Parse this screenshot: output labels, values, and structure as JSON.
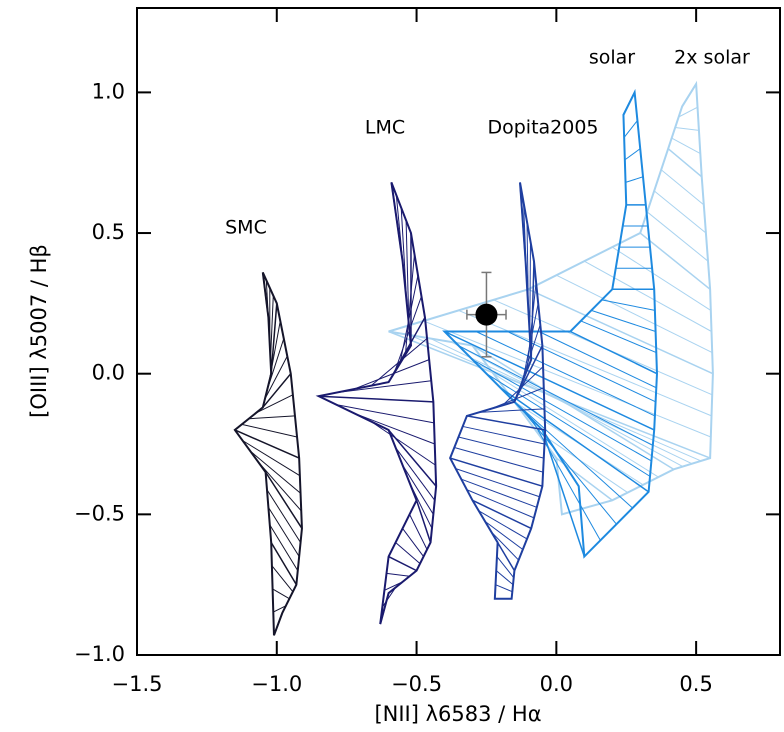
{
  "chart_data": {
    "type": "grid-line",
    "x_label": "[NII] λ6583 / Hα",
    "y_label": "[OIII] λ5007 / Hβ",
    "xlim": [
      -1.5,
      0.8
    ],
    "ylim": [
      -1.0,
      1.3
    ],
    "xticks": [
      {
        "value": -1.5,
        "label": "−1.5"
      },
      {
        "value": -1.0,
        "label": "−1.0"
      },
      {
        "value": -0.5,
        "label": "−0.5"
      },
      {
        "value": 0.0,
        "label": "0.0"
      },
      0.5
    ],
    "yticks": [
      {
        "value": -1.0,
        "label": "−1.0"
      },
      {
        "value": -0.5,
        "label": "−0.5"
      },
      {
        "value": 0.0,
        "label": "0.0"
      },
      0.5,
      {
        "value": 1.0,
        "label": "1.0"
      }
    ],
    "series": [
      {
        "name": "2x solar",
        "color": "#a9d3f0",
        "x": [
          0.5,
          0.52,
          0.55,
          0.56,
          0.55,
          0.42,
          0.2,
          0.02,
          0.0,
          -0.3,
          -0.6,
          -0.1,
          0.3,
          0.4,
          0.45
        ],
        "values": [
          1.03,
          0.7,
          0.3,
          0.0,
          -0.3,
          -0.34,
          -0.45,
          -0.5,
          -0.3,
          0.1,
          0.15,
          0.3,
          0.5,
          0.8,
          0.95
        ]
      },
      {
        "name": "solar",
        "color": "#1e8ae0",
        "x": [
          0.28,
          0.32,
          0.35,
          0.36,
          0.35,
          0.33,
          0.1,
          0.08,
          -0.05,
          -0.2,
          -0.4,
          0.05,
          0.2,
          0.25,
          0.24
        ],
        "values": [
          1.0,
          0.6,
          0.3,
          0.0,
          -0.2,
          -0.42,
          -0.65,
          -0.4,
          -0.2,
          -0.05,
          0.15,
          0.15,
          0.3,
          0.6,
          0.92
        ]
      },
      {
        "name": "Dopita2005",
        "color": "#1f3fa0",
        "x": [
          -0.13,
          -0.08,
          -0.05,
          -0.04,
          -0.05,
          -0.09,
          -0.15,
          -0.16,
          -0.22,
          -0.21,
          -0.3,
          -0.38,
          -0.32,
          -0.15,
          -0.09,
          -0.11
        ],
        "values": [
          0.68,
          0.4,
          0.1,
          -0.2,
          -0.4,
          -0.55,
          -0.7,
          -0.8,
          -0.8,
          -0.6,
          -0.45,
          -0.3,
          -0.15,
          -0.1,
          0.05,
          0.4
        ]
      },
      {
        "name": "LMC",
        "color": "#1a1a6e",
        "x": [
          -0.59,
          -0.52,
          -0.47,
          -0.44,
          -0.43,
          -0.45,
          -0.5,
          -0.6,
          -0.63,
          -0.6,
          -0.5,
          -0.6,
          -0.85,
          -0.6,
          -0.52,
          -0.55
        ],
        "values": [
          0.68,
          0.5,
          0.2,
          -0.1,
          -0.4,
          -0.6,
          -0.7,
          -0.78,
          -0.89,
          -0.65,
          -0.45,
          -0.2,
          -0.08,
          -0.03,
          0.1,
          0.4
        ]
      },
      {
        "name": "SMC",
        "color": "#15152a",
        "x": [
          -1.05,
          -1.0,
          -0.95,
          -0.92,
          -0.91,
          -0.93,
          -0.98,
          -1.01,
          -1.02,
          -1.04,
          -1.15,
          -1.05,
          -1.02,
          -1.03
        ],
        "values": [
          0.36,
          0.25,
          0.0,
          -0.3,
          -0.55,
          -0.75,
          -0.85,
          -0.93,
          -0.6,
          -0.35,
          -0.2,
          -0.12,
          0.0,
          0.2
        ]
      }
    ],
    "point": {
      "x": -0.25,
      "y": 0.21,
      "xerr": 0.07,
      "yerr": 0.15,
      "color": "#000000"
    }
  }
}
